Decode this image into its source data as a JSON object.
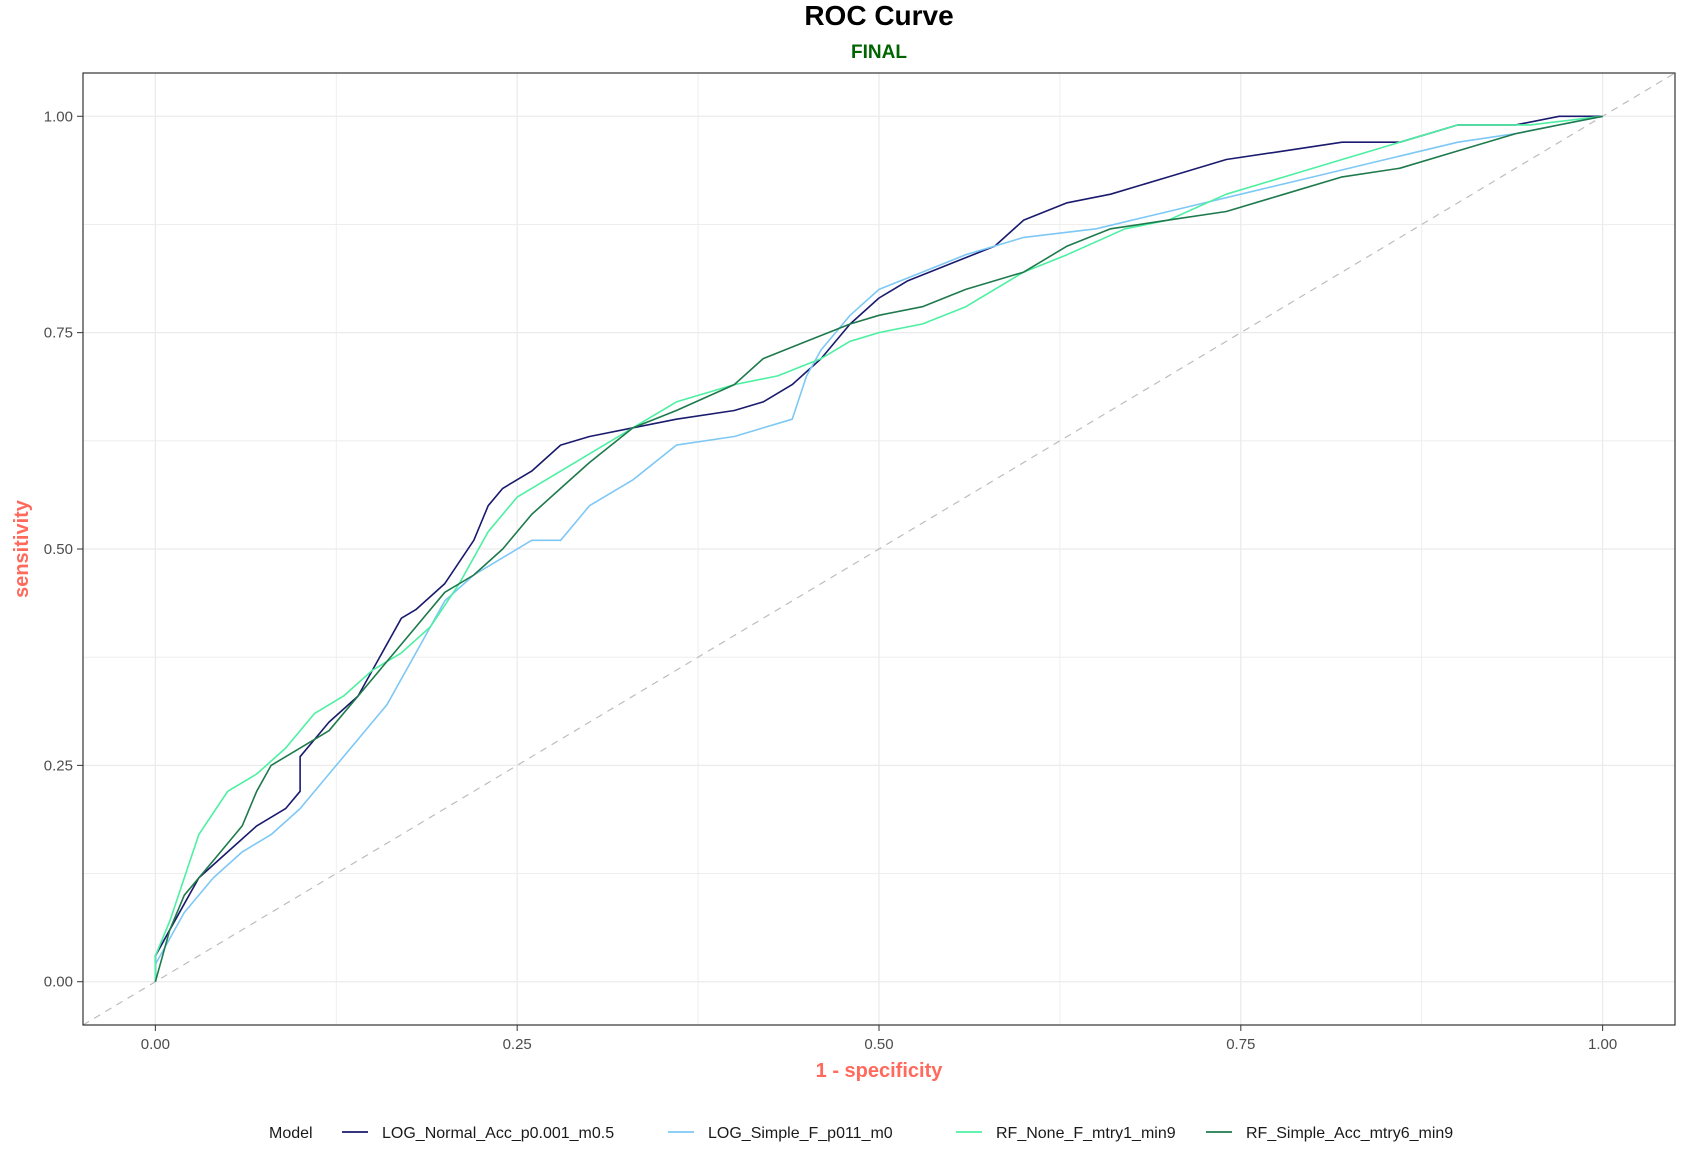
{
  "chart_data": {
    "type": "line",
    "title": "ROC Curve",
    "subtitle": "FINAL",
    "xlabel": "1 - specificity",
    "ylabel": "sensitivity",
    "xlim": [
      -0.05,
      1.05
    ],
    "ylim": [
      -0.05,
      1.05
    ],
    "x_ticks": [
      0.0,
      0.25,
      0.5,
      0.75,
      1.0
    ],
    "x_tick_labels": [
      "0.00",
      "0.25",
      "0.50",
      "0.75",
      "1.00"
    ],
    "y_ticks": [
      0.0,
      0.25,
      0.5,
      0.75,
      1.0
    ],
    "y_tick_labels": [
      "0.00",
      "0.25",
      "0.50",
      "0.75",
      "1.00"
    ],
    "grid": true,
    "reference_line": {
      "x": [
        0,
        1
      ],
      "y": [
        0,
        1
      ],
      "style": "dashed"
    },
    "legend": {
      "title": "Model",
      "position": "bottom"
    },
    "colors": {
      "title": "#000000",
      "subtitle": "#006400",
      "axis_title": "#ff6a5c",
      "grid": "#ebebeb",
      "reference": "#bdbdbd"
    },
    "series": [
      {
        "name": "LOG_Normal_Acc_p0.001_m0.5",
        "color": "#1a1a6e",
        "x": [
          0.0,
          0.0,
          0.01,
          0.02,
          0.03,
          0.05,
          0.07,
          0.09,
          0.1,
          0.1,
          0.11,
          0.12,
          0.14,
          0.16,
          0.17,
          0.18,
          0.2,
          0.22,
          0.23,
          0.24,
          0.26,
          0.28,
          0.3,
          0.33,
          0.36,
          0.4,
          0.42,
          0.44,
          0.46,
          0.48,
          0.5,
          0.52,
          0.55,
          0.58,
          0.6,
          0.63,
          0.66,
          0.7,
          0.74,
          0.78,
          0.82,
          0.86,
          0.9,
          0.94,
          0.97,
          1.0
        ],
        "y": [
          0.0,
          0.03,
          0.06,
          0.09,
          0.12,
          0.15,
          0.18,
          0.2,
          0.22,
          0.26,
          0.28,
          0.3,
          0.33,
          0.39,
          0.42,
          0.43,
          0.46,
          0.51,
          0.55,
          0.57,
          0.59,
          0.62,
          0.63,
          0.64,
          0.65,
          0.66,
          0.67,
          0.69,
          0.72,
          0.76,
          0.79,
          0.81,
          0.83,
          0.85,
          0.88,
          0.9,
          0.91,
          0.93,
          0.95,
          0.96,
          0.97,
          0.97,
          0.99,
          0.99,
          1.0,
          1.0
        ]
      },
      {
        "name": "LOG_Simple_F_p011_m0",
        "color": "#7ec8f5",
        "x": [
          0.0,
          0.0,
          0.01,
          0.02,
          0.04,
          0.06,
          0.08,
          0.1,
          0.12,
          0.14,
          0.16,
          0.18,
          0.2,
          0.22,
          0.24,
          0.26,
          0.28,
          0.29,
          0.3,
          0.33,
          0.36,
          0.4,
          0.44,
          0.45,
          0.46,
          0.48,
          0.5,
          0.53,
          0.56,
          0.6,
          0.65,
          0.7,
          0.75,
          0.8,
          0.85,
          0.9,
          0.94,
          0.97,
          1.0
        ],
        "y": [
          0.0,
          0.02,
          0.05,
          0.08,
          0.12,
          0.15,
          0.17,
          0.2,
          0.24,
          0.28,
          0.32,
          0.38,
          0.44,
          0.47,
          0.49,
          0.51,
          0.51,
          0.53,
          0.55,
          0.58,
          0.62,
          0.63,
          0.65,
          0.7,
          0.73,
          0.77,
          0.8,
          0.82,
          0.84,
          0.86,
          0.87,
          0.89,
          0.91,
          0.93,
          0.95,
          0.97,
          0.98,
          0.99,
          1.0
        ]
      },
      {
        "name": "RF_None_F_mtry1_min9",
        "color": "#4df0a2",
        "x": [
          0.0,
          0.0,
          0.01,
          0.02,
          0.03,
          0.05,
          0.07,
          0.09,
          0.11,
          0.13,
          0.15,
          0.17,
          0.19,
          0.21,
          0.23,
          0.25,
          0.27,
          0.3,
          0.33,
          0.36,
          0.4,
          0.43,
          0.46,
          0.48,
          0.5,
          0.53,
          0.56,
          0.6,
          0.63,
          0.67,
          0.7,
          0.74,
          0.78,
          0.82,
          0.86,
          0.9,
          0.95,
          1.0
        ],
        "y": [
          0.0,
          0.03,
          0.07,
          0.12,
          0.17,
          0.22,
          0.24,
          0.27,
          0.31,
          0.33,
          0.36,
          0.38,
          0.41,
          0.46,
          0.52,
          0.56,
          0.58,
          0.61,
          0.64,
          0.67,
          0.69,
          0.7,
          0.72,
          0.74,
          0.75,
          0.76,
          0.78,
          0.82,
          0.84,
          0.87,
          0.88,
          0.91,
          0.93,
          0.95,
          0.97,
          0.99,
          0.99,
          1.0
        ]
      },
      {
        "name": "RF_Simple_Acc_mtry6_min9",
        "color": "#1e7a4c",
        "x": [
          0.0,
          0.0,
          0.01,
          0.02,
          0.04,
          0.06,
          0.07,
          0.08,
          0.1,
          0.12,
          0.14,
          0.16,
          0.18,
          0.2,
          0.22,
          0.24,
          0.26,
          0.28,
          0.3,
          0.33,
          0.36,
          0.4,
          0.42,
          0.45,
          0.48,
          0.5,
          0.53,
          0.56,
          0.6,
          0.63,
          0.66,
          0.7,
          0.74,
          0.78,
          0.82,
          0.86,
          0.9,
          0.94,
          0.97,
          1.0
        ],
        "y": [
          0.0,
          0.0,
          0.06,
          0.1,
          0.14,
          0.18,
          0.22,
          0.25,
          0.27,
          0.29,
          0.33,
          0.37,
          0.41,
          0.45,
          0.47,
          0.5,
          0.54,
          0.57,
          0.6,
          0.64,
          0.66,
          0.69,
          0.72,
          0.74,
          0.76,
          0.77,
          0.78,
          0.8,
          0.82,
          0.85,
          0.87,
          0.88,
          0.89,
          0.91,
          0.93,
          0.94,
          0.96,
          0.98,
          0.99,
          1.0
        ]
      }
    ]
  }
}
